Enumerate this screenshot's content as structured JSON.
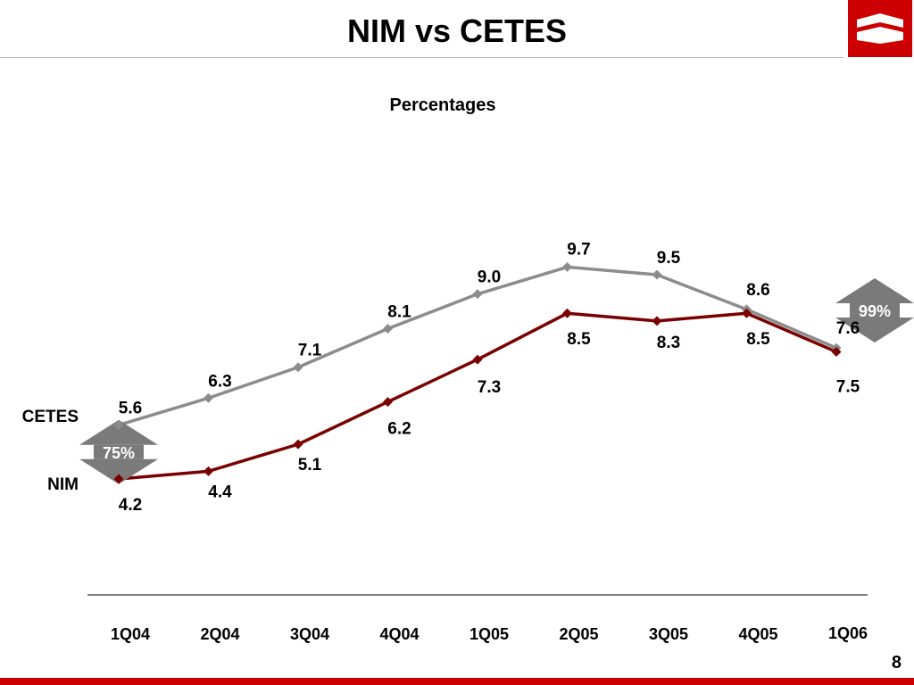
{
  "slide": {
    "title": "NIM vs CETES",
    "page_number": "8"
  },
  "colors": {
    "cetes": "#8c8c8c",
    "nim": "#7a0000",
    "brand": "#cc0000",
    "badge": "#7a7a7a"
  },
  "logo": {
    "icon": "bank-logo-icon"
  },
  "chart_data": {
    "type": "line",
    "title": "Percentages",
    "categories": [
      "1Q04",
      "2Q04",
      "3Q04",
      "4Q04",
      "1Q05",
      "2Q05",
      "3Q05",
      "4Q05",
      "1Q06"
    ],
    "series": [
      {
        "name": "CETES",
        "values": [
          5.6,
          6.3,
          7.1,
          8.1,
          9.0,
          9.7,
          9.5,
          8.6,
          7.6
        ],
        "labels": [
          "5.6",
          "6.3",
          "7.1",
          "8.1",
          "9.0",
          "9.7",
          "9.5",
          "8.6",
          "7.6"
        ]
      },
      {
        "name": "NIM",
        "values": [
          4.2,
          4.4,
          5.1,
          6.2,
          7.3,
          8.5,
          8.3,
          8.5,
          7.5
        ],
        "labels": [
          "4.2",
          "4.4",
          "5.1",
          "6.2",
          "7.3",
          "8.5",
          "8.3",
          "8.5",
          "7.5"
        ]
      }
    ],
    "annotations": [
      "75%",
      "99%"
    ],
    "grid": false,
    "legend": "left-labels"
  }
}
